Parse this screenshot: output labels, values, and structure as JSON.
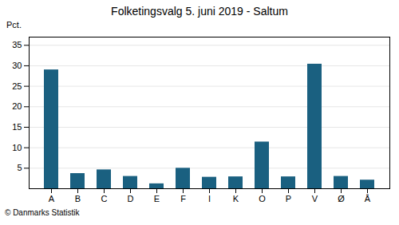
{
  "chart_data": {
    "type": "bar",
    "title": "Folketingsvalg 5. juni 2019 - Saltum",
    "categories": [
      "A",
      "B",
      "C",
      "D",
      "E",
      "F",
      "I",
      "K",
      "O",
      "P",
      "V",
      "Ø",
      "Å"
    ],
    "values": [
      29.0,
      3.7,
      4.6,
      3.0,
      1.2,
      5.0,
      2.8,
      2.9,
      11.4,
      2.9,
      30.4,
      3.0,
      2.1
    ],
    "color": "#1a6080",
    "ylabel": "Pct.",
    "caption": "© Danmarks Statistik",
    "ylim": [
      0,
      37
    ],
    "yticks": [
      5,
      10,
      15,
      20,
      25,
      30,
      35
    ],
    "grid": true
  }
}
